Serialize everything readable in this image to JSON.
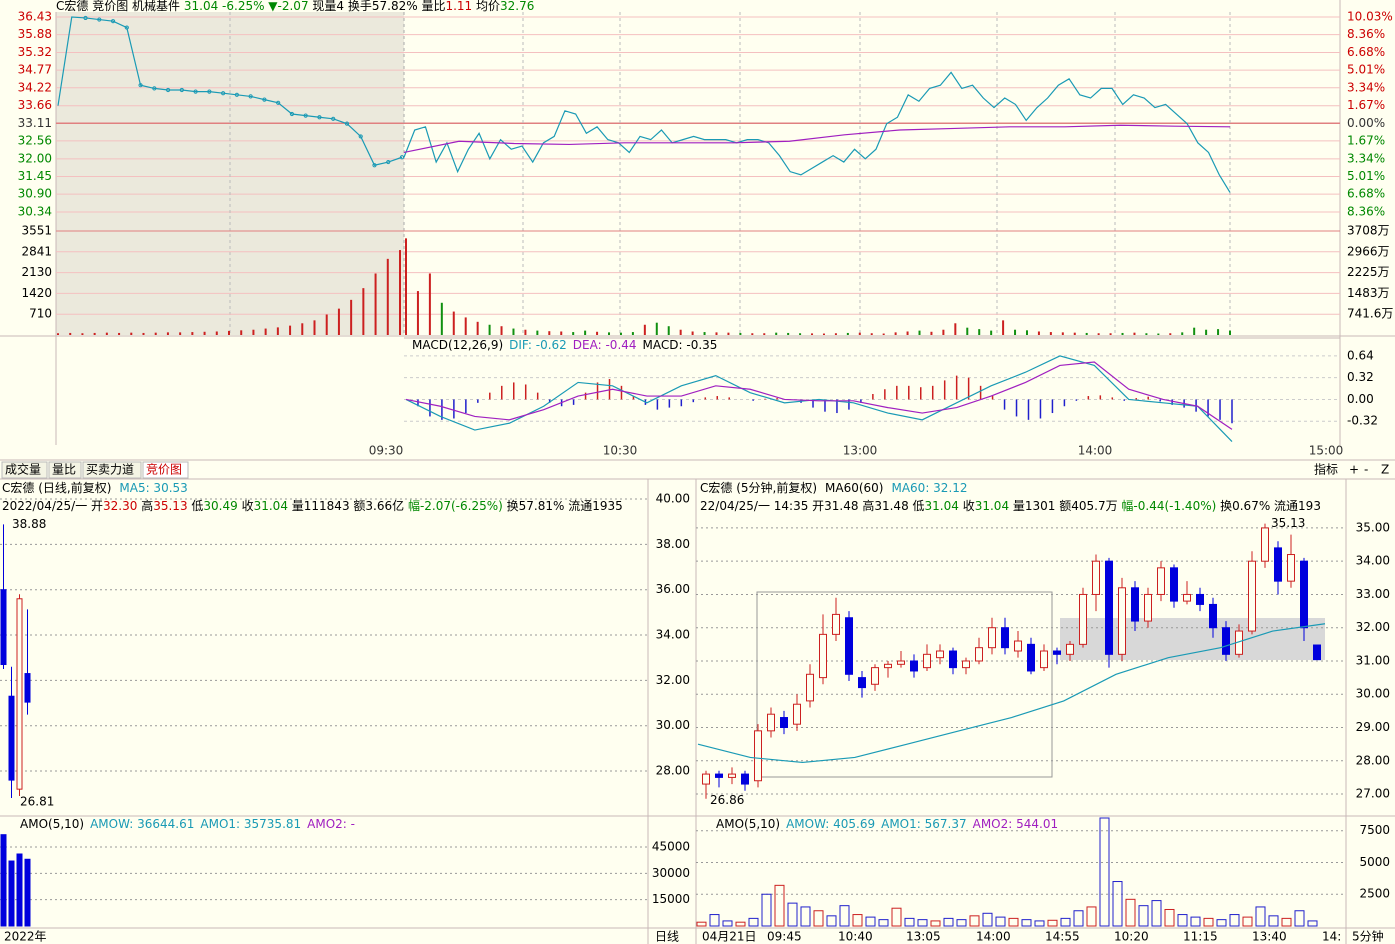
{
  "ui": {
    "header": [
      {
        "text": "C宏德",
        "color": "#000000"
      },
      {
        "text": " 竞价图",
        "color": "#000000"
      },
      {
        "text": " 机械基件",
        "color": "#000000"
      },
      {
        "text": " 31.04",
        "color": "#008800"
      },
      {
        "text": " -6.25%",
        "color": "#008800"
      },
      {
        "text": " ▼-2.07",
        "color": "#008800"
      },
      {
        "text": " 现量",
        "color": "#000000"
      },
      {
        "text": "4",
        "color": "#000000"
      },
      {
        "text": " 换手",
        "color": "#000000"
      },
      {
        "text": "57.82%",
        "color": "#000000"
      },
      {
        "text": " 量比",
        "color": "#000000"
      },
      {
        "text": "1.11",
        "color": "#cc0000"
      },
      {
        "text": " 均价",
        "color": "#000000"
      },
      {
        "text": "32.76",
        "color": "#008800"
      }
    ],
    "tabs": [
      "成交量",
      "量比",
      "买卖力道",
      "竞价图"
    ],
    "active_tab": 3,
    "buttons": [
      "指标",
      "+",
      "-",
      "Z"
    ],
    "time_labels": [
      "09:30",
      "10:30",
      "13:00",
      "14:00",
      "15:00"
    ],
    "min5_time_labels": [
      "04月21日",
      "09:45",
      "10:40",
      "13:05",
      "14:00",
      "14:55",
      "10:20",
      "11:15",
      "13:40",
      "14:",
      "5分钟"
    ]
  },
  "chart_data": [
    {
      "type": "line",
      "prev_close": 33.11,
      "price_color": "#1a9ab5",
      "avg_color": "#a020c0",
      "ylim": [
        30.34,
        36.43
      ],
      "yticks": [
        36.43,
        35.88,
        35.32,
        34.77,
        34.22,
        33.66,
        33.11,
        32.56,
        {
          "value": 32,
          "label": "32.00"
        },
        31.45,
        {
          "value": 30.9,
          "label": "30.90"
        },
        30.34
      ],
      "y2lim": [
        -8.36,
        10.03
      ],
      "y2ticks": [
        {
          "value": 10.03,
          "label": "10.03%"
        },
        {
          "value": 8.36,
          "label": "8.36%"
        },
        {
          "value": 6.68,
          "label": "6.68%"
        },
        {
          "value": 5.01,
          "label": "5.01%"
        },
        {
          "value": 3.34,
          "label": "3.34%"
        },
        {
          "value": 1.67,
          "label": "1.67%"
        },
        {
          "value": 0,
          "label": "0.00%"
        },
        {
          "value": -1.67,
          "label": "1.67%"
        },
        {
          "value": -3.34,
          "label": "3.34%"
        },
        {
          "value": -5.01,
          "label": "5.01%"
        },
        {
          "value": -6.68,
          "label": "6.68%"
        },
        {
          "value": -8.36,
          "label": "8.36%"
        }
      ],
      "auction_values": [
        33.66,
        36.43,
        36.4,
        36.35,
        36.3,
        36.1,
        34.3,
        34.2,
        34.15,
        34.15,
        34.1,
        34.1,
        34.05,
        34.0,
        33.95,
        33.85,
        33.75,
        33.4,
        33.35,
        33.3,
        33.25,
        33.1,
        32.7,
        31.8,
        31.9,
        32.05
      ],
      "values": [
        32.05,
        32.9,
        33.0,
        31.9,
        32.5,
        31.6,
        32.3,
        32.8,
        32.0,
        32.6,
        32.3,
        32.4,
        31.9,
        32.5,
        32.7,
        33.5,
        33.4,
        32.8,
        33.0,
        32.6,
        32.5,
        32.2,
        32.7,
        32.6,
        32.9,
        32.5,
        32.6,
        32.7,
        32.6,
        32.6,
        32.6,
        32.5,
        32.6,
        32.6,
        32.5,
        32.1,
        31.6,
        31.5,
        31.7,
        31.9,
        32.1,
        31.9,
        32.3,
        32.0,
        32.3,
        33.1,
        33.3,
        34.0,
        33.8,
        34.2,
        34.3,
        34.7,
        34.2,
        34.3,
        33.9,
        33.6,
        33.9,
        33.7,
        33.2,
        33.6,
        33.9,
        34.3,
        34.5,
        34.0,
        33.9,
        34.2,
        34.2,
        33.7,
        34.0,
        33.9,
        33.6,
        33.7,
        33.4,
        33.1,
        32.5,
        32.2,
        31.5,
        30.95
      ],
      "avg_values": [
        32.2,
        32.55,
        32.48,
        32.45,
        32.5,
        32.5,
        32.5,
        32.55,
        32.75,
        32.9,
        32.95,
        33.0,
        33.0,
        33.05,
        33.02,
        33.0
      ]
    },
    {
      "type": "bar",
      "ylim": [
        0,
        3551
      ],
      "yticks": [
        3551,
        2841,
        2130,
        1420,
        710
      ],
      "y2lim": [
        0,
        3708
      ],
      "y2ticks": [
        {
          "value": 3708,
          "label": "3708万"
        },
        {
          "value": 2966,
          "label": "2966万"
        },
        {
          "value": 2225,
          "label": "2225万"
        },
        {
          "value": 1483,
          "label": "1483万"
        },
        {
          "value": 741.6,
          "label": "741.6万"
        }
      ],
      "auction_values": [
        60,
        70,
        60,
        70,
        80,
        70,
        80,
        70,
        80,
        90,
        90,
        100,
        110,
        120,
        140,
        160,
        180,
        220,
        260,
        320,
        400,
        500,
        700,
        900,
        1200,
        1600,
        2100,
        2600,
        2900
      ],
      "values": [
        3300,
        1500,
        2100,
        1100,
        800,
        600,
        450,
        350,
        300,
        220,
        180,
        150,
        130,
        120,
        100,
        150,
        110,
        90,
        80,
        100,
        350,
        420,
        300,
        180,
        120,
        100,
        90,
        80,
        70,
        60,
        60,
        80,
        70,
        60,
        55,
        50,
        60,
        70,
        80,
        60,
        50,
        90,
        120,
        150,
        110,
        180,
        400,
        250,
        200,
        150,
        500,
        180,
        160,
        120,
        100,
        90,
        80,
        70,
        60,
        60,
        70,
        80,
        60,
        50,
        60,
        90,
        250,
        180,
        200,
        150
      ]
    },
    {
      "type": "macd",
      "title": "MACD(12,26,9)",
      "dif_label": "DIF: -0.62",
      "dea_label": "DEA: -0.44",
      "macd_label": "MACD: -0.35",
      "dif_color": "#1a9ab5",
      "dea_color": "#a020c0",
      "ylim": [
        -0.67,
        0.83
      ],
      "yticks": [
        0.64,
        0.32,
        {
          "value": 0,
          "label": "0.00"
        },
        -0.32
      ],
      "hist": [
        0,
        -0.1,
        -0.25,
        -0.3,
        -0.28,
        -0.2,
        -0.05,
        0.1,
        0.2,
        0.25,
        0.22,
        0.1,
        -0.05,
        -0.1,
        -0.08,
        0.1,
        0.25,
        0.3,
        0.2,
        0.05,
        -0.08,
        -0.15,
        -0.12,
        -0.1,
        -0.04,
        0.03,
        0.05,
        0.03,
        0,
        -0.02,
        0.01,
        0.02,
        0,
        -0.05,
        -0.12,
        -0.18,
        -0.2,
        -0.15,
        -0.05,
        0.08,
        0.15,
        0.2,
        0.2,
        0.18,
        0.2,
        0.28,
        0.35,
        0.32,
        0.2,
        0.05,
        -0.15,
        -0.25,
        -0.3,
        -0.28,
        -0.2,
        -0.1,
        -0.02,
        0.05,
        0.06,
        0.03,
        -0.02,
        0.02,
        0.04,
        -0.03,
        -0.08,
        -0.12,
        -0.18,
        -0.25,
        -0.3,
        -0.35
      ],
      "dif": [
        0,
        -0.25,
        -0.45,
        -0.35,
        -0.1,
        0.25,
        0.2,
        -0.05,
        0.2,
        0.35,
        0.1,
        -0.05,
        0.0,
        -0.05,
        -0.2,
        -0.3,
        -0.05,
        0.2,
        0.4,
        0.64,
        0.5,
        0.0,
        -0.05,
        -0.1,
        -0.62
      ],
      "dea": [
        0,
        -0.1,
        -0.25,
        -0.3,
        -0.15,
        0.05,
        0.15,
        0.05,
        0.05,
        0.2,
        0.15,
        0.0,
        -0.02,
        -0.02,
        -0.12,
        -0.2,
        -0.12,
        0.05,
        0.25,
        0.5,
        0.55,
        0.15,
        0.0,
        -0.1,
        -0.44
      ]
    },
    {
      "type": "candlestick",
      "title": "C宏德 (日线,前复权)",
      "ma_label": "MA5: 30.53",
      "info": [
        {
          "text": "2022/04/25/一 开",
          "color": "#000000"
        },
        {
          "text": "32.30",
          "color": "#cc0000"
        },
        {
          "text": " 高",
          "color": "#000000"
        },
        {
          "text": "35.13",
          "color": "#cc0000"
        },
        {
          "text": " 低",
          "color": "#000000"
        },
        {
          "text": "30.49",
          "color": "#008800"
        },
        {
          "text": " 收",
          "color": "#000000"
        },
        {
          "text": "31.04",
          "color": "#008800"
        },
        {
          "text": " 量111843 额3.66亿 ",
          "color": "#000000"
        },
        {
          "text": "幅-2.07(-6.25%)",
          "color": "#008800"
        },
        {
          "text": " 换57.81% 流通1935",
          "color": "#000000"
        }
      ],
      "open": [
        36.0,
        31.3,
        27.2,
        32.3
      ],
      "close": [
        32.7,
        27.6,
        35.6,
        31.04
      ],
      "high": [
        38.88,
        32.6,
        35.8,
        35.13
      ],
      "low": [
        32.5,
        26.81,
        26.9,
        30.49
      ],
      "high_label": "38.88",
      "low_label": "26.81",
      "x_label": "2022年",
      "period": "日线",
      "ylim": [
        26.06,
        40.84
      ],
      "yticks": [
        {
          "value": 40,
          "label": "40.00"
        },
        {
          "value": 38,
          "label": "38.00"
        },
        {
          "value": 36,
          "label": "36.00"
        },
        {
          "value": 34,
          "label": "34.00"
        },
        {
          "value": 32,
          "label": "32.00"
        },
        {
          "value": 30,
          "label": "30.00"
        },
        {
          "value": 28,
          "label": "28.00"
        }
      ]
    },
    {
      "type": "bar",
      "title": "AMO(5,10)",
      "amow_label": "AMOW: 36644.61",
      "amo1_label": "AMO1: 35735.81",
      "amo2_label": "AMO2: -",
      "color": "#0000dd",
      "values": [
        52000,
        37000,
        41000,
        38000
      ],
      "ylim": [
        0,
        61500
      ],
      "yticks": [
        45000,
        30000,
        15000
      ]
    },
    {
      "type": "candlestick",
      "title": "C宏德 (5分钟,前复权)",
      "ma_name": "MA60(60)",
      "ma_label": "MA60: 32.12",
      "ma_color": "#1a9ab5",
      "info": [
        {
          "text": "22/04/25/一 14:35 开",
          "color": "#000000"
        },
        {
          "text": "31.48",
          "color": "#000000"
        },
        {
          "text": " 高",
          "color": "#000000"
        },
        {
          "text": "31.48",
          "color": "#000000"
        },
        {
          "text": " 低",
          "color": "#000000"
        },
        {
          "text": "31.04",
          "color": "#008800"
        },
        {
          "text": " 收",
          "color": "#000000"
        },
        {
          "text": "31.04",
          "color": "#008800"
        },
        {
          "text": " 量1301 额405.7万 ",
          "color": "#000000"
        },
        {
          "text": "幅-0.44(-1.40%)",
          "color": "#008800"
        },
        {
          "text": " 换0.67% 流通193",
          "color": "#000000"
        }
      ],
      "open": [
        27.3,
        27.6,
        27.5,
        27.6,
        27.4,
        28.9,
        29.3,
        29.1,
        29.8,
        30.5,
        31.8,
        32.3,
        30.5,
        30.3,
        30.8,
        30.9,
        31.0,
        30.8,
        31.1,
        31.3,
        30.8,
        31.0,
        31.4,
        32.0,
        31.3,
        31.5,
        30.8,
        31.3,
        31.2,
        31.5,
        33.0,
        34.0,
        31.2,
        33.2,
        32.2,
        33.0,
        33.8,
        32.8,
        33.0,
        32.7,
        32.0,
        31.2,
        31.9,
        34.0,
        34.4,
        33.4,
        34.0,
        31.48
      ],
      "close": [
        27.6,
        27.5,
        27.6,
        27.3,
        28.9,
        29.4,
        29.0,
        29.7,
        30.6,
        31.8,
        32.4,
        30.6,
        30.2,
        30.8,
        30.9,
        31.0,
        30.7,
        31.2,
        31.3,
        30.8,
        31.0,
        31.4,
        32.0,
        31.4,
        31.6,
        30.7,
        31.3,
        31.2,
        31.5,
        33.0,
        34.0,
        31.2,
        33.2,
        32.2,
        33.0,
        33.8,
        32.8,
        33.0,
        32.7,
        32.0,
        31.2,
        31.9,
        34.0,
        35.0,
        33.4,
        34.2,
        32.0,
        31.04
      ],
      "high": [
        27.7,
        27.7,
        27.8,
        27.7,
        29.1,
        29.6,
        29.5,
        30.0,
        30.9,
        32.4,
        32.9,
        32.5,
        30.7,
        30.9,
        31.0,
        31.3,
        31.2,
        31.5,
        31.5,
        31.4,
        31.1,
        31.7,
        32.3,
        32.3,
        31.9,
        31.7,
        31.5,
        31.4,
        31.6,
        33.2,
        34.2,
        34.1,
        33.5,
        33.4,
        33.2,
        34.0,
        33.9,
        33.4,
        33.2,
        32.9,
        32.2,
        32.1,
        34.3,
        35.13,
        34.6,
        34.8,
        34.1,
        31.48
      ],
      "low": [
        26.86,
        27.2,
        27.3,
        27.1,
        27.2,
        28.7,
        28.8,
        28.9,
        29.6,
        30.3,
        31.6,
        30.4,
        29.9,
        30.1,
        30.5,
        30.8,
        30.5,
        30.7,
        30.9,
        30.6,
        30.6,
        30.9,
        31.2,
        31.2,
        31.1,
        30.6,
        30.7,
        30.9,
        31.0,
        31.4,
        32.5,
        30.8,
        31.0,
        31.9,
        32.0,
        32.8,
        32.6,
        32.7,
        32.5,
        31.7,
        31.0,
        31.1,
        31.8,
        33.8,
        33.0,
        33.2,
        31.6,
        31.04
      ],
      "ma_values": [
        28.5,
        28.1,
        27.95,
        28.1,
        28.5,
        28.9,
        29.3,
        29.8,
        30.6,
        31.1,
        31.4,
        31.9,
        32.12
      ],
      "high_label": "35.13",
      "low_label": "26.86",
      "ylim": [
        26.37,
        36.14
      ],
      "yticks": [
        {
          "value": 35,
          "label": "35.00"
        },
        {
          "value": 34,
          "label": "34.00"
        },
        {
          "value": 33,
          "label": "33.00"
        },
        {
          "value": 32,
          "label": "32.00"
        },
        {
          "value": 31,
          "label": "31.00"
        },
        {
          "value": 30,
          "label": "30.00"
        },
        {
          "value": 29,
          "label": "29.00"
        },
        {
          "value": 28,
          "label": "28.00"
        },
        {
          "value": 27,
          "label": "27.00"
        }
      ]
    },
    {
      "type": "bar",
      "title": "AMO(5,10)",
      "amow_label": "AMOW: 405.69",
      "amo1_label": "AMO1: 567.37",
      "amo2_label": "AMO2: 544.01",
      "values": [
        300,
        900,
        400,
        300,
        600,
        2500,
        3200,
        1800,
        1500,
        1200,
        800,
        1600,
        900,
        700,
        500,
        1400,
        600,
        500,
        400,
        600,
        500,
        800,
        1000,
        700,
        600,
        500,
        400,
        450,
        600,
        1200,
        1500,
        8500,
        3500,
        2100,
        1600,
        2000,
        1300,
        900,
        700,
        600,
        500,
        900,
        700,
        1500,
        800,
        600,
        1200,
        400
      ],
      "ylim": [
        0,
        8500
      ],
      "yticks": [
        7500,
        5000,
        2500
      ]
    }
  ]
}
